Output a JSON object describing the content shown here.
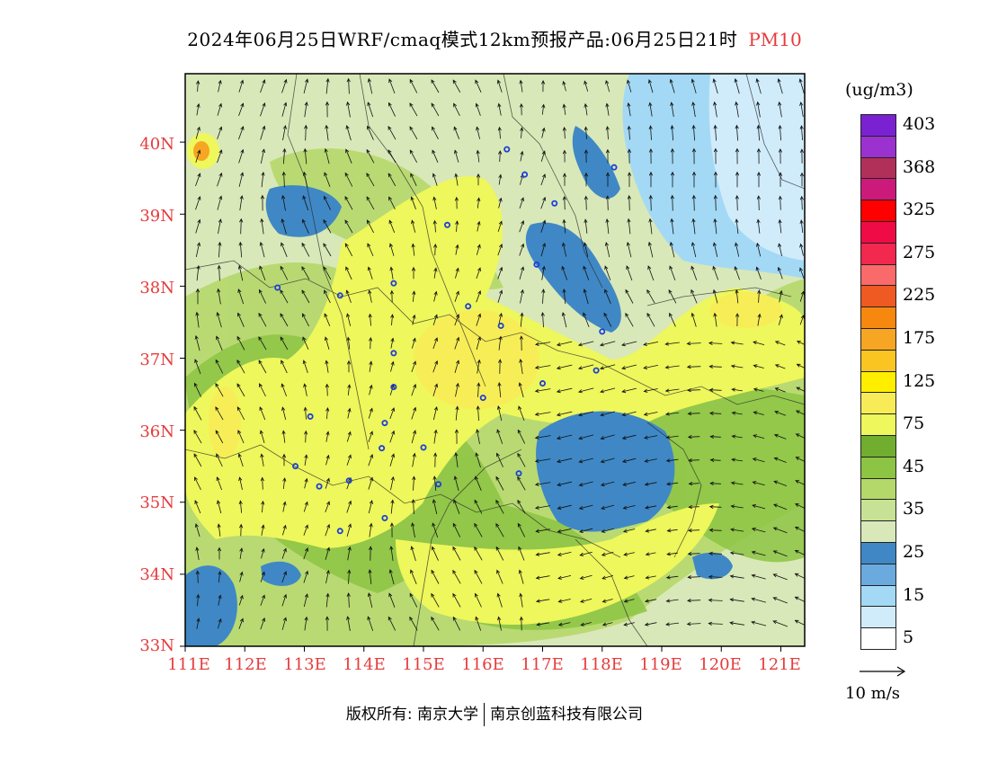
{
  "title": {
    "main": "2024年06月25日WRF/cmaq模式12km预报产品:06月25日21时",
    "pollutant": "PM10"
  },
  "axes": {
    "lat_labels": [
      "40N",
      "39N",
      "38N",
      "37N",
      "36N",
      "35N",
      "34N",
      "33N"
    ],
    "lon_labels": [
      "111E",
      "112E",
      "113E",
      "114E",
      "115E",
      "116E",
      "117E",
      "118E",
      "119E",
      "120E",
      "121E"
    ],
    "lat_range": [
      33,
      40.95
    ],
    "lon_range": [
      111,
      121.4
    ],
    "label_color": "#e53b3b"
  },
  "legend": {
    "unit": "(ug/m3)",
    "levels": [
      {
        "label": "403",
        "color": "#7a22d1"
      },
      {
        "label": "",
        "color": "#9b31cf"
      },
      {
        "label": "368",
        "color": "#b0305a"
      },
      {
        "label": "",
        "color": "#cc1a7a"
      },
      {
        "label": "325",
        "color": "#ff0000"
      },
      {
        "label": "",
        "color": "#ef0b45"
      },
      {
        "label": "275",
        "color": "#f2284f"
      },
      {
        "label": "",
        "color": "#fa6a6a"
      },
      {
        "label": "225",
        "color": "#ef5a22"
      },
      {
        "label": "",
        "color": "#f7880f"
      },
      {
        "label": "175",
        "color": "#f6a623"
      },
      {
        "label": "",
        "color": "#fac520"
      },
      {
        "label": "125",
        "color": "#ffee00"
      },
      {
        "label": "",
        "color": "#f7ec57"
      },
      {
        "label": "75",
        "color": "#eef75b"
      },
      {
        "label": "",
        "color": "#71ad2f"
      },
      {
        "label": "45",
        "color": "#8cc443"
      },
      {
        "label": "",
        "color": "#b5d86a"
      },
      {
        "label": "35",
        "color": "#c7e295"
      },
      {
        "label": "",
        "color": "#d9e8b8"
      },
      {
        "label": "25",
        "color": "#3f88c5"
      },
      {
        "label": "",
        "color": "#6aaade"
      },
      {
        "label": "15",
        "color": "#a3d9f5"
      },
      {
        "label": "",
        "color": "#d0ecfb"
      },
      {
        "label": "5",
        "color": "#ffffff"
      }
    ]
  },
  "wind_reference": {
    "label": "10 m/s"
  },
  "footer": {
    "copyright": "版权所有: 南京大学",
    "company": "南京创蓝科技有限公司"
  },
  "map_features": {
    "background_color": "#d9e8b8",
    "station_marker_color": "#1e3fd6",
    "stations": [
      [
        116.4,
        39.9
      ],
      [
        116.7,
        39.55
      ],
      [
        117.2,
        39.15
      ],
      [
        118.2,
        39.65
      ],
      [
        115.4,
        38.85
      ],
      [
        116.9,
        38.3
      ],
      [
        114.5,
        38.04
      ],
      [
        113.6,
        37.87
      ],
      [
        112.55,
        37.98
      ],
      [
        115.75,
        37.72
      ],
      [
        116.3,
        37.45
      ],
      [
        118.0,
        37.37
      ],
      [
        114.5,
        37.07
      ],
      [
        114.5,
        36.6
      ],
      [
        116.0,
        36.45
      ],
      [
        117.0,
        36.65
      ],
      [
        117.9,
        36.83
      ],
      [
        113.1,
        36.19
      ],
      [
        114.35,
        36.1
      ],
      [
        112.85,
        35.5
      ],
      [
        114.3,
        35.75
      ],
      [
        115.0,
        35.76
      ],
      [
        115.25,
        35.25
      ],
      [
        116.6,
        35.4
      ],
      [
        113.75,
        35.3
      ],
      [
        113.25,
        35.22
      ],
      [
        114.35,
        34.78
      ],
      [
        113.6,
        34.6
      ]
    ],
    "low_patches": [
      {
        "cx": 117.45,
        "cy": 35.65,
        "rx": 0.95,
        "ry": 0.65
      },
      {
        "cx": 113.6,
        "cy": 39.05,
        "rx": 0.55,
        "ry": 0.4
      },
      {
        "cx": 118.3,
        "cy": 38.1,
        "rx": 0.65,
        "ry": 0.45
      },
      {
        "cx": 111.5,
        "cy": 33.75,
        "rx": 0.3,
        "ry": 0.55
      },
      {
        "cx": 120.0,
        "cy": 34.0,
        "rx": 0.25,
        "ry": 0.18
      },
      {
        "cx": 113.0,
        "cy": 34.0,
        "rx": 0.25,
        "ry": 0.18
      },
      {
        "cx": 111.7,
        "cy": 38.9,
        "rx": 0.2,
        "ry": 0.3
      },
      {
        "cx": 117.3,
        "cy": 39.8,
        "rx": 0.3,
        "ry": 0.6
      }
    ],
    "high_patches": [
      {
        "cx": 115.2,
        "cy": 37.3,
        "rx": 1.3,
        "ry": 0.9
      },
      {
        "cx": 113.8,
        "cy": 35.7,
        "rx": 0.9,
        "ry": 0.8
      },
      {
        "cx": 115.8,
        "cy": 38.5,
        "rx": 0.5,
        "ry": 0.6
      },
      {
        "cx": 116.3,
        "cy": 34.5,
        "rx": 1.0,
        "ry": 0.3
      },
      {
        "cx": 120.5,
        "cy": 37.4,
        "rx": 0.9,
        "ry": 0.45
      },
      {
        "cx": 111.6,
        "cy": 36.0,
        "rx": 0.35,
        "ry": 1.0
      },
      {
        "cx": 118.9,
        "cy": 36.7,
        "rx": 1.1,
        "ry": 0.4
      },
      {
        "cx": 112.4,
        "cy": 37.4,
        "rx": 0.35,
        "ry": 0.6
      }
    ]
  }
}
